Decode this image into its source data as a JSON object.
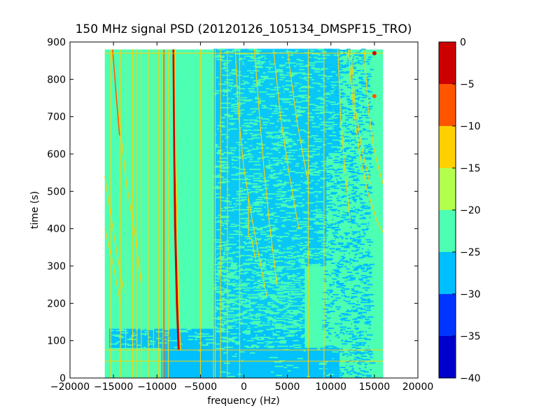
{
  "chart_data": {
    "type": "heatmap",
    "title": "150 MHz signal PSD (20120126_105134_DMSPF15_TRO)",
    "xlabel": "frequency (Hz)",
    "ylabel": "time (s)",
    "xlim": [
      -20000,
      20000
    ],
    "ylim": [
      0,
      900
    ],
    "xticks": [
      -20000,
      -15000,
      -10000,
      -5000,
      0,
      5000,
      10000,
      15000,
      20000
    ],
    "xtick_labels": [
      "−20000",
      "−15000",
      "−10000",
      "−5000",
      "0",
      "5000",
      "10000",
      "15000",
      "20000"
    ],
    "yticks": [
      0,
      100,
      200,
      300,
      400,
      500,
      600,
      700,
      800,
      900
    ],
    "ytick_labels": [
      "0",
      "100",
      "200",
      "300",
      "400",
      "500",
      "600",
      "700",
      "800",
      "900"
    ],
    "data_extent": {
      "freq_range": [
        -16000,
        16000
      ],
      "time_range": [
        0,
        880
      ]
    },
    "colorbar": {
      "levels": [
        -40,
        -35,
        -30,
        -25,
        -20,
        -15,
        -10,
        -5,
        0
      ],
      "tick_labels": [
        "−40",
        "−35",
        "−30",
        "−25",
        "−20",
        "−15",
        "−10",
        "−5",
        "0"
      ],
      "colors": [
        "#0000cd",
        "#0035ff",
        "#00bfff",
        "#4dffb3",
        "#b3ff4d",
        "#ffd000",
        "#ff5500",
        "#cd0000"
      ]
    },
    "background_level_color": "#4dffb3",
    "noise_level_color": "#00bfff",
    "grid": false
  }
}
